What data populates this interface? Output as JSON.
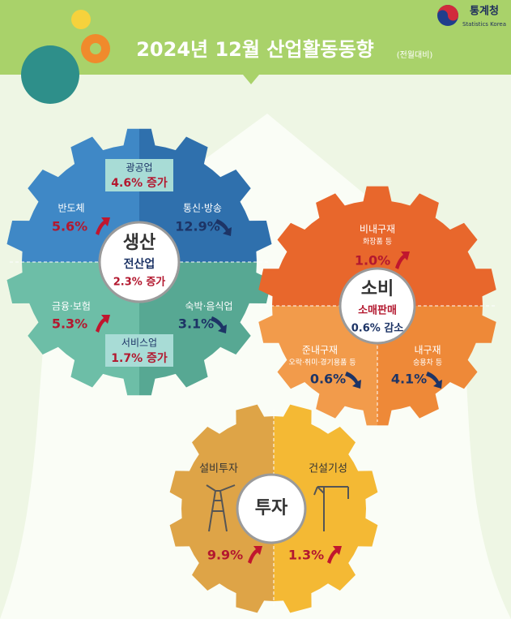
{
  "header": {
    "title": "2024년 12월 산업활동동향",
    "subtitle": "(전월대비)",
    "logo": "통계청",
    "logo_en": "Statistics Korea"
  },
  "production": {
    "title": "생산",
    "total_label": "전산업",
    "total_value": "2.3% 증가",
    "mining": {
      "label": "광공업",
      "value": "4.6% 증가"
    },
    "semiconductor": {
      "label": "반도체",
      "value": "5.6%"
    },
    "telecom": {
      "label": "통신·방송",
      "value": "12.9%"
    },
    "finance": {
      "label": "금융·보험",
      "value": "5.3%"
    },
    "lodging": {
      "label": "숙박·음식업",
      "value": "3.1%"
    },
    "services": {
      "label": "서비스업",
      "value": "1.7% 증가"
    }
  },
  "consumption": {
    "title": "소비",
    "total_label": "소매판매",
    "total_value": "0.6% 감소",
    "nondurable": {
      "label": "비내구재",
      "note": "화장품 등",
      "value": "1.0%"
    },
    "semidurable": {
      "label": "준내구재",
      "note": "오락·취미·경기용품 등",
      "value": "0.6%"
    },
    "durable": {
      "label": "내구재",
      "note": "승용차 등",
      "value": "4.1%"
    }
  },
  "investment": {
    "title": "투자",
    "facility": {
      "label": "설비투자",
      "value": "9.9%"
    },
    "construction": {
      "label": "건설기성",
      "value": "1.3%"
    }
  }
}
